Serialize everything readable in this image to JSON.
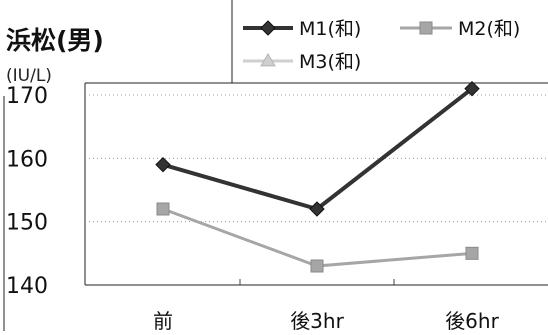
{
  "chart_data": {
    "type": "line",
    "title": "浜松(男)",
    "unit_label": "(IU/L)",
    "categories": [
      "前",
      "後3hr",
      "後6hr"
    ],
    "ylim": [
      140,
      170
    ],
    "yticks": [
      140,
      150,
      160,
      170
    ],
    "grid": "horizontal-dotted",
    "legend_position": "top-right",
    "series": [
      {
        "name": "M1(和)",
        "values": [
          159,
          152,
          171
        ],
        "color": "#333333",
        "marker": "diamond"
      },
      {
        "name": "M2(和)",
        "values": [
          152,
          143,
          145
        ],
        "color": "#a6a6a6",
        "marker": "square"
      },
      {
        "name": "M3(和)",
        "values": [
          null,
          null,
          null
        ],
        "color": "#cfcfcf",
        "marker": "triangle"
      }
    ]
  }
}
